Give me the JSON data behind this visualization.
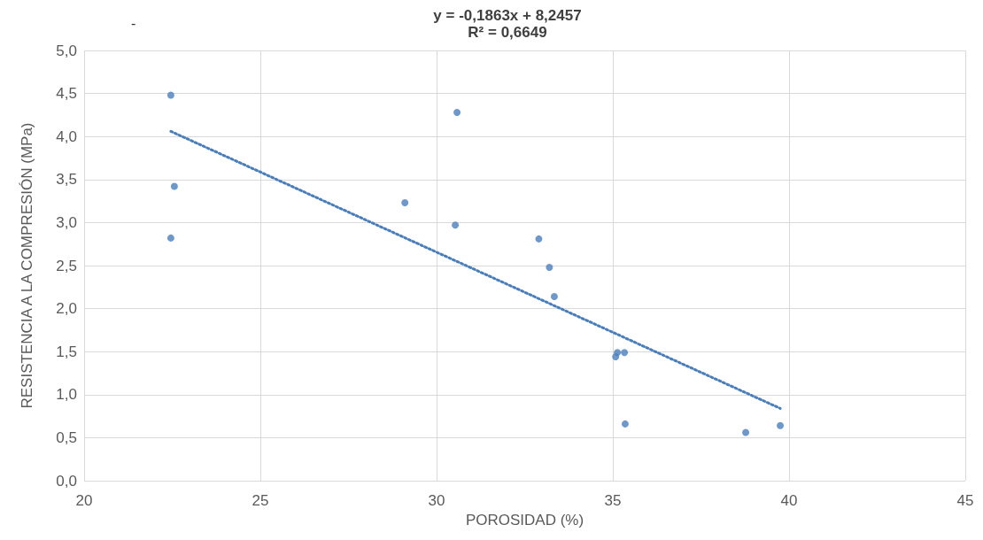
{
  "chart_data": {
    "type": "scatter",
    "title": "y = -0,1863x + 8,2457",
    "subtitle": "R² = 0,6649",
    "xlabel": "POROSIDAD (%)",
    "ylabel": "RESISTENCIA A LA COMPRESIÓN (MPa)",
    "annotations": [
      "-"
    ],
    "series": [
      {
        "color": "#4a7ebb",
        "marker": "circle",
        "x": [
          22.46,
          22.56,
          22.46,
          29.1,
          30.58,
          30.53,
          32.9,
          33.2,
          33.34,
          35.13,
          35.08,
          35.33,
          35.35,
          38.77,
          39.75
        ],
        "values": [
          4.48,
          3.42,
          2.82,
          3.23,
          4.28,
          2.97,
          2.81,
          2.48,
          2.14,
          1.49,
          1.44,
          1.49,
          0.66,
          0.56,
          0.64
        ]
      },
      {
        "type": "line",
        "color": "#4a7ebb",
        "marker": "none",
        "line_style": "dotted",
        "x": [
          22.46,
          39.75
        ],
        "values": [
          4.06,
          0.84
        ]
      }
    ],
    "xlim": [
      20,
      45
    ],
    "xticks": [
      20,
      25,
      30,
      35,
      40,
      45
    ],
    "ylim": [
      0,
      5
    ],
    "yticks": [
      {
        "value": 0,
        "label": "0,0"
      },
      {
        "value": 0.5,
        "label": "0,5"
      },
      {
        "value": 1,
        "label": "1,0"
      },
      {
        "value": 1.5,
        "label": "1,5"
      },
      {
        "value": 2,
        "label": "2,0"
      },
      {
        "value": 2.5,
        "label": "2,5"
      },
      {
        "value": 3,
        "label": "3,0"
      },
      {
        "value": 3.5,
        "label": "3,5"
      },
      {
        "value": 4,
        "label": "4,0"
      },
      {
        "value": 4.5,
        "label": "4,5"
      },
      {
        "value": 5,
        "label": "5,0"
      }
    ],
    "grid": true
  }
}
